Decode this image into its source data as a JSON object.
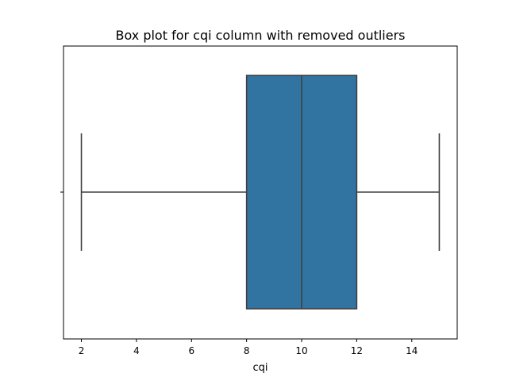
{
  "chart_data": {
    "type": "box",
    "title": "Box plot for cqi column with removed outliers",
    "xlabel": "cqi",
    "ylabel": "",
    "orientation": "horizontal",
    "xlim": [
      1.35,
      15.65
    ],
    "xticks": [
      2,
      4,
      6,
      8,
      10,
      12,
      14
    ],
    "xtick_labels": [
      "2",
      "4",
      "6",
      "8",
      "10",
      "12",
      "14"
    ],
    "grid": false,
    "legend": false,
    "series": [
      {
        "whisker_low": 2,
        "q1": 8,
        "median": 10,
        "q3": 12,
        "whisker_high": 15
      }
    ],
    "colors": {
      "box_fill": "#3274a1",
      "line": "#3f3f3f",
      "axes": "#000000"
    }
  }
}
